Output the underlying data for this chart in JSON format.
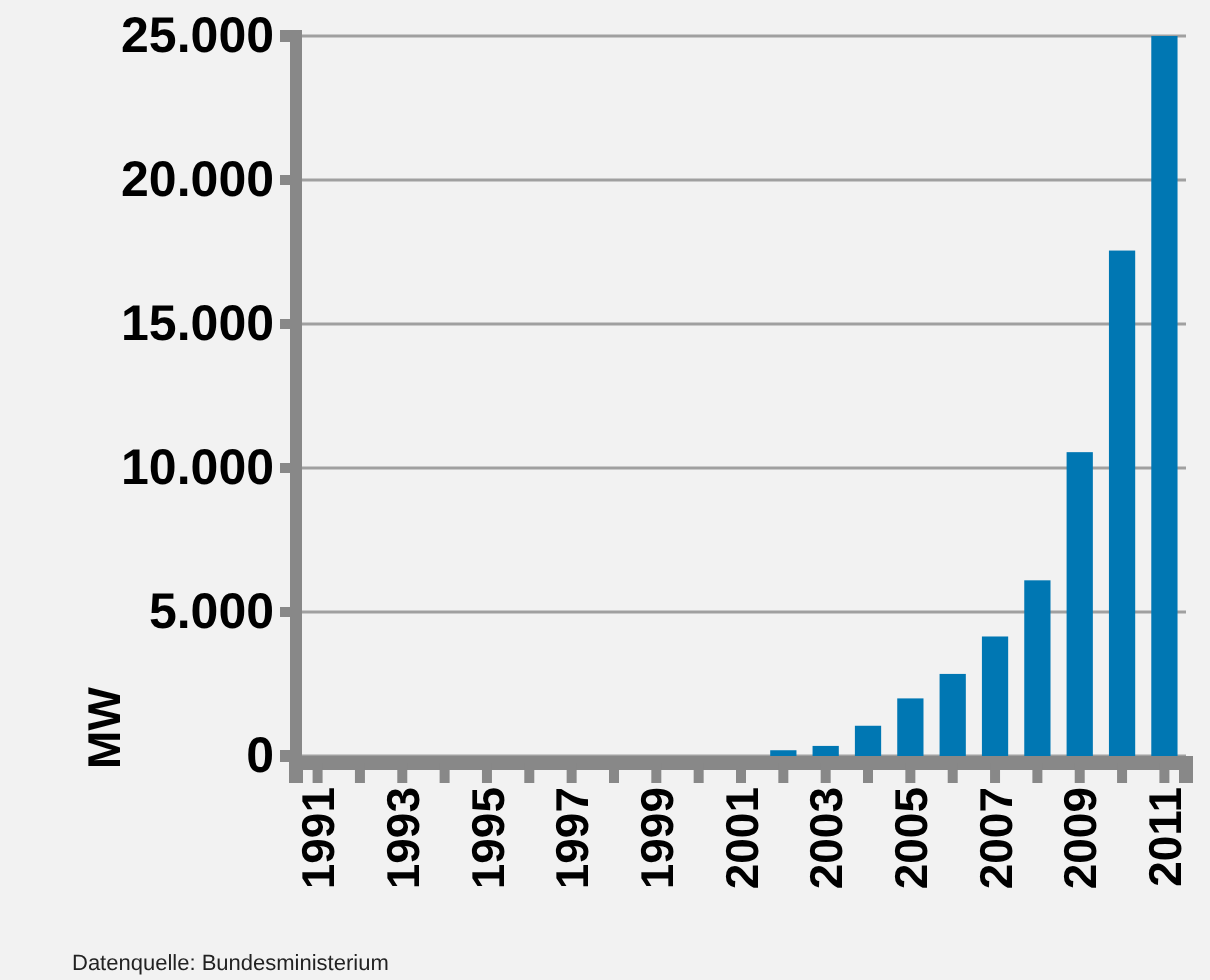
{
  "chart_data": {
    "type": "bar",
    "ylabel": "MW",
    "categories": [
      "1991",
      null,
      "1993",
      null,
      "1995",
      null,
      "1997",
      null,
      "1999",
      null,
      "2001",
      null,
      "2003",
      null,
      "2005",
      null,
      "2007",
      null,
      "2009",
      null,
      "2011"
    ],
    "values": [
      0,
      0,
      0,
      0,
      0,
      0,
      0,
      0,
      0,
      0,
      0,
      200,
      350,
      1050,
      2000,
      2850,
      4150,
      6100,
      10550,
      17550,
      25000
    ],
    "color": "#0077b3",
    "ylim": [
      0,
      25000
    ],
    "yticks": [
      0,
      {
        "value": 5000,
        "label": "5.000"
      },
      {
        "value": 10000,
        "label": "10.000"
      },
      {
        "value": 15000,
        "label": "15.000"
      },
      {
        "value": 20000,
        "label": "20.000"
      },
      {
        "value": 25000,
        "label": "25.000"
      }
    ],
    "grid": "y",
    "annotations": [
      "Datenquelle: Bundesministerium"
    ]
  }
}
